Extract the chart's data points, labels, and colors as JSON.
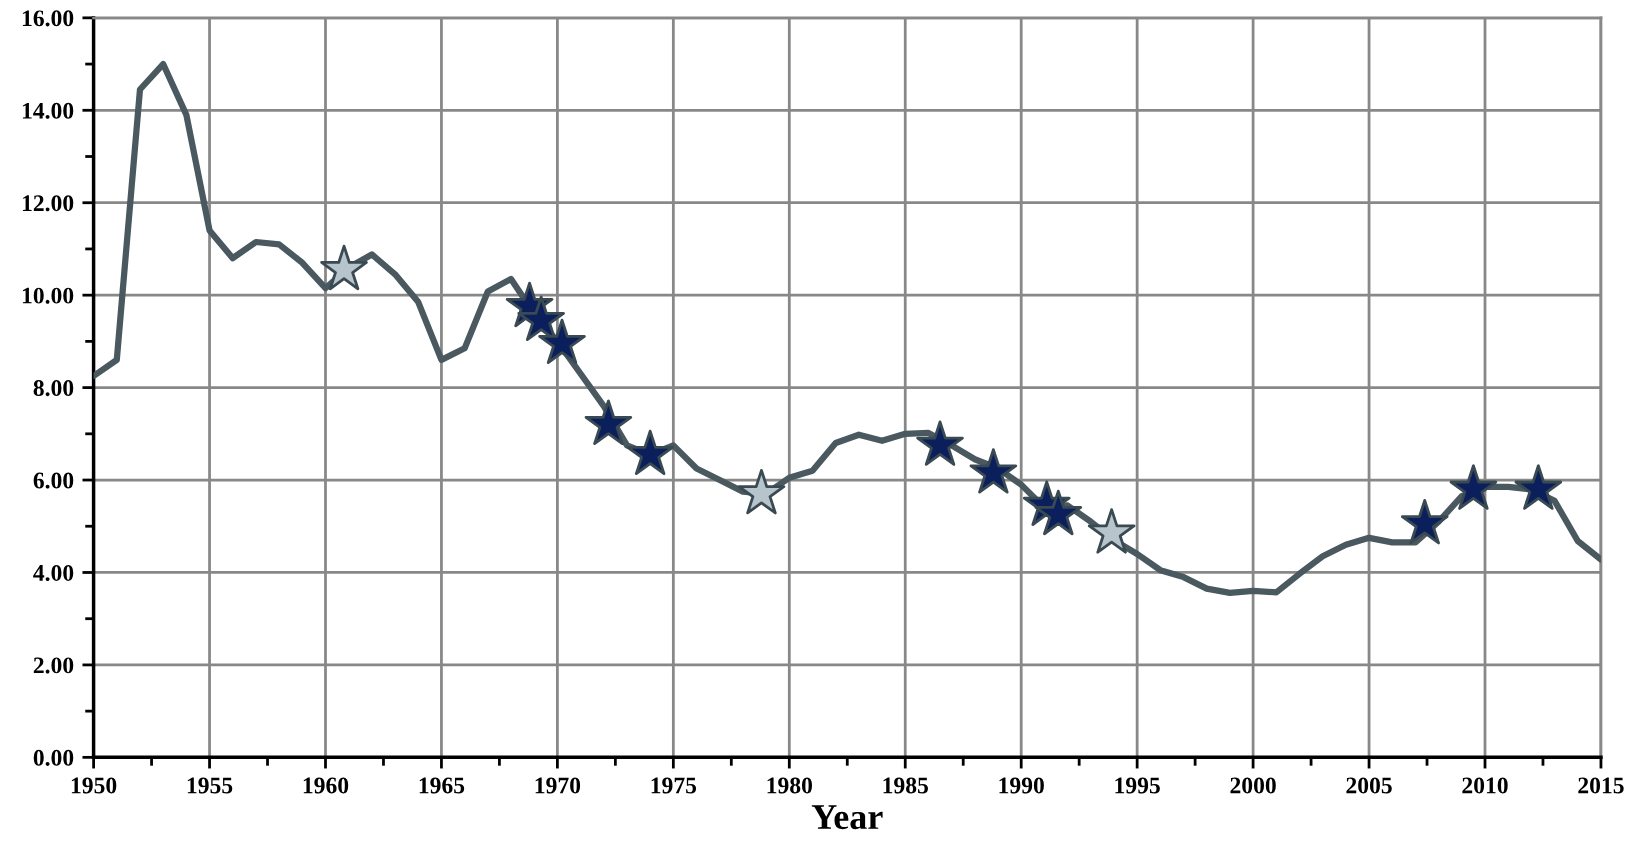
{
  "chart_data": {
    "type": "line",
    "xlabel": "Year",
    "xlim": [
      1950,
      2015
    ],
    "ylim": [
      0,
      16
    ],
    "xticks": [
      1950,
      {
        "value": 1952.5,
        "label": null
      },
      1955,
      {
        "value": 1957.5,
        "label": null
      },
      1960,
      {
        "value": 1962.5,
        "label": null
      },
      1965,
      {
        "value": 1967.5,
        "label": null
      },
      1970,
      {
        "value": 1972.5,
        "label": null
      },
      1975,
      {
        "value": 1977.5,
        "label": null
      },
      1980,
      {
        "value": 1982.5,
        "label": null
      },
      1985,
      {
        "value": 1987.5,
        "label": null
      },
      1990,
      {
        "value": 1992.5,
        "label": null
      },
      1995,
      {
        "value": 1997.5,
        "label": null
      },
      2000,
      {
        "value": 2002.5,
        "label": null
      },
      2005,
      {
        "value": 2007.5,
        "label": null
      },
      2010,
      {
        "value": 2012.5,
        "label": null
      },
      2015
    ],
    "yticks": [
      {
        "value": 0,
        "label": "0.00"
      },
      {
        "value": 1,
        "label": null
      },
      {
        "value": 2,
        "label": "2.00"
      },
      {
        "value": 3,
        "label": null
      },
      {
        "value": 4,
        "label": "4.00"
      },
      {
        "value": 5,
        "label": null
      },
      {
        "value": 6,
        "label": "6.00"
      },
      {
        "value": 7,
        "label": null
      },
      {
        "value": 8,
        "label": "8.00"
      },
      {
        "value": 9,
        "label": null
      },
      {
        "value": 10,
        "label": "10.00"
      },
      {
        "value": 11,
        "label": null
      },
      {
        "value": 12,
        "label": "12.00"
      },
      {
        "value": 13,
        "label": null
      },
      {
        "value": 14,
        "label": "14.00"
      },
      {
        "value": 15,
        "label": null
      },
      {
        "value": 16,
        "label": "16.00"
      }
    ],
    "grid": true,
    "series": [
      {
        "color": "#4a5860",
        "marker": "none",
        "line_style": "solid",
        "x": [
          1950,
          1951,
          1952,
          1953,
          1954,
          1955,
          1956,
          1957,
          1958,
          1959,
          1960,
          1961,
          1962,
          1963,
          1964,
          1965,
          1966,
          1967,
          1968,
          1969,
          1970,
          1971,
          1972,
          1973,
          1974,
          1975,
          1976,
          1977,
          1978,
          1979,
          1980,
          1981,
          1982,
          1983,
          1984,
          1985,
          1986,
          1987,
          1988,
          1989,
          1990,
          1991,
          1992,
          1993,
          1994,
          1995,
          1996,
          1997,
          1998,
          1999,
          2000,
          2001,
          2002,
          2003,
          2004,
          2005,
          2006,
          2007,
          2008,
          2009,
          2010,
          2011,
          2012,
          2013,
          2014,
          2015
        ],
        "values": [
          8.25,
          8.6,
          14.45,
          15.0,
          13.9,
          11.4,
          10.8,
          11.15,
          11.1,
          10.7,
          10.15,
          10.6,
          10.88,
          10.45,
          9.85,
          8.6,
          8.85,
          10.08,
          10.35,
          9.6,
          9.0,
          8.3,
          7.6,
          6.75,
          6.55,
          6.75,
          6.25,
          6.0,
          5.75,
          5.7,
          6.05,
          6.2,
          6.8,
          6.98,
          6.85,
          7.0,
          7.02,
          6.75,
          6.45,
          6.25,
          5.9,
          5.4,
          5.45,
          5.1,
          4.7,
          4.4,
          4.05,
          3.9,
          3.65,
          3.56,
          3.6,
          3.57,
          3.97,
          4.35,
          4.6,
          4.75,
          4.65,
          4.65,
          5.1,
          5.65,
          5.85,
          5.85,
          5.8,
          5.55,
          4.68,
          4.28
        ]
      },
      {
        "type": "scatter",
        "color": "#b8c4cc",
        "marker": "star",
        "x": [
          1960.8,
          1978.8,
          1993.9
        ],
        "values": [
          10.55,
          5.7,
          4.85
        ]
      },
      {
        "type": "scatter",
        "color": "#0b1f5c",
        "marker": "star",
        "x": [
          1968.8,
          1969.3,
          1970.2,
          1972.2,
          1974.0,
          1986.5,
          1988.8,
          1991.1,
          1991.6,
          2007.4,
          2009.5,
          2012.3
        ],
        "values": [
          9.75,
          9.45,
          8.95,
          7.2,
          6.55,
          6.75,
          6.15,
          5.45,
          5.25,
          5.05,
          5.8,
          5.8
        ]
      }
    ]
  }
}
